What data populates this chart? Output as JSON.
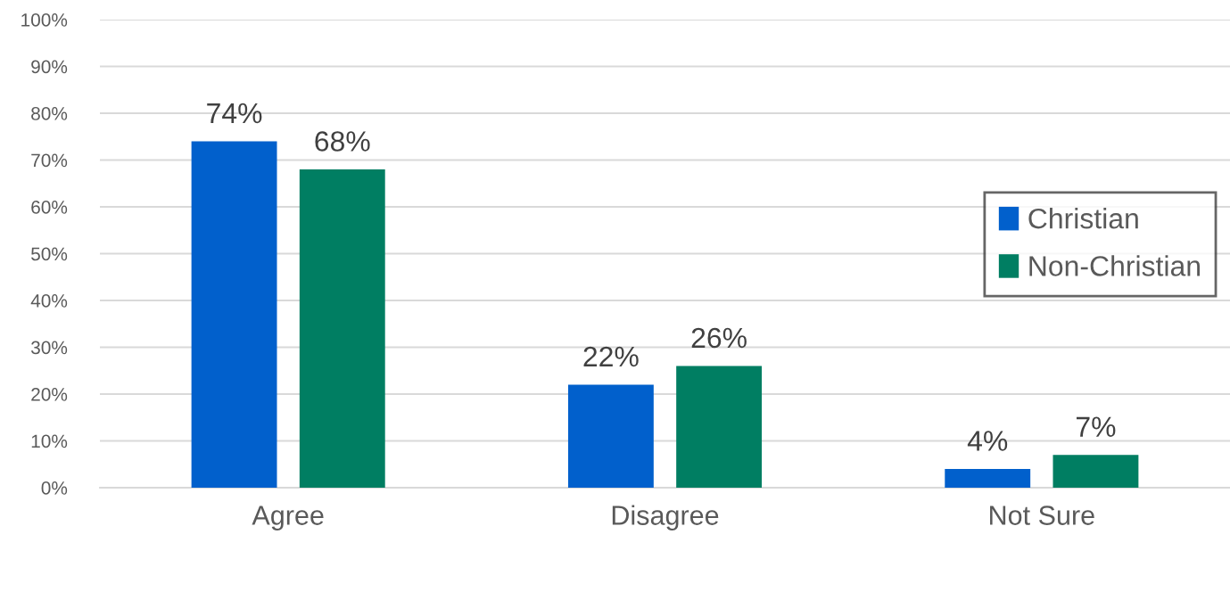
{
  "chart_data": {
    "type": "bar",
    "categories": [
      "Agree",
      "Disagree",
      "Not Sure"
    ],
    "series": [
      {
        "name": "Christian",
        "color": "#0160cc",
        "values": [
          74,
          22,
          4
        ],
        "value_labels": [
          "74%",
          "22%",
          "4%"
        ]
      },
      {
        "name": "Non-Christian",
        "color": "#007e62",
        "values": [
          68,
          26,
          7
        ],
        "value_labels": [
          "68%",
          "26%",
          "7%"
        ]
      }
    ],
    "ylim": [
      0,
      100
    ],
    "yticks": [
      {
        "value": 0,
        "label": "0%"
      },
      {
        "value": 10,
        "label": "10%"
      },
      {
        "value": 20,
        "label": "20%"
      },
      {
        "value": 30,
        "label": "30%"
      },
      {
        "value": 40,
        "label": "40%"
      },
      {
        "value": 50,
        "label": "50%"
      },
      {
        "value": 60,
        "label": "60%"
      },
      {
        "value": 70,
        "label": "70%"
      },
      {
        "value": 80,
        "label": "80%"
      },
      {
        "value": 90,
        "label": "90%"
      },
      {
        "value": 100,
        "label": "100%"
      }
    ],
    "grid": "y",
    "legend": "right"
  }
}
